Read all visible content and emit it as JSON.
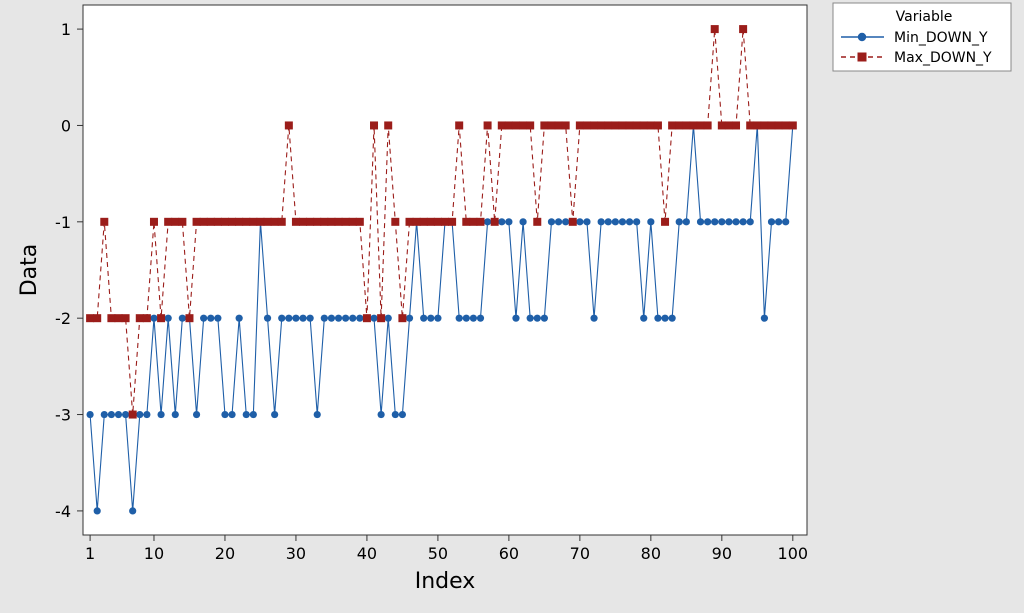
{
  "chart_data": {
    "type": "line",
    "xlabel": "Index",
    "ylabel": "Data",
    "xlim": [
      0,
      102
    ],
    "ylim": [
      -4.25,
      1.25
    ],
    "x_ticks": [
      1,
      10,
      20,
      30,
      40,
      50,
      60,
      70,
      80,
      90,
      100
    ],
    "y_ticks": [
      1,
      0,
      -1,
      -2,
      -3,
      -4
    ],
    "x_tick_labels": [
      "1",
      "10",
      "20",
      "30",
      "40",
      "50",
      "60",
      "70",
      "80",
      "90",
      "100"
    ],
    "y_tick_labels": [
      "1",
      "0",
      "-1",
      "-2",
      "-3",
      "-4"
    ],
    "legend": {
      "title": "Variable",
      "placement": "outside-top-right"
    },
    "x": [
      1,
      2,
      3,
      4,
      5,
      6,
      7,
      8,
      9,
      10,
      11,
      12,
      13,
      14,
      15,
      16,
      17,
      18,
      19,
      20,
      21,
      22,
      23,
      24,
      25,
      26,
      27,
      28,
      29,
      30,
      31,
      32,
      33,
      34,
      35,
      36,
      37,
      38,
      39,
      40,
      41,
      42,
      43,
      44,
      45,
      46,
      47,
      48,
      49,
      50,
      51,
      52,
      53,
      54,
      55,
      56,
      57,
      58,
      59,
      60,
      61,
      62,
      63,
      64,
      65,
      66,
      67,
      68,
      69,
      70,
      71,
      72,
      73,
      74,
      75,
      76,
      77,
      78,
      79,
      80,
      81,
      82,
      83,
      84,
      85,
      86,
      87,
      88,
      89,
      90,
      91,
      92,
      93,
      94,
      95,
      96,
      97,
      98,
      99,
      100
    ],
    "series": [
      {
        "name": "Min_DOWN_Y",
        "color": "#1f5fa8",
        "marker": "circle",
        "line_style": "solid",
        "values": [
          -3,
          -4,
          -3,
          -3,
          -3,
          -3,
          -4,
          -3,
          -3,
          -2,
          -3,
          -2,
          -3,
          -2,
          -2,
          -3,
          -2,
          -2,
          -2,
          -3,
          -3,
          -2,
          -3,
          -3,
          -1,
          -2,
          -3,
          -2,
          -2,
          -2,
          -2,
          -2,
          -3,
          -2,
          -2,
          -2,
          -2,
          -2,
          -2,
          -2,
          -2,
          -3,
          -2,
          -3,
          -3,
          -2,
          -1,
          -2,
          -2,
          -2,
          -1,
          -1,
          -2,
          -2,
          -2,
          -2,
          -1,
          -1,
          -1,
          -1,
          -2,
          -1,
          -2,
          -2,
          -2,
          -1,
          -1,
          -1,
          -1,
          -1,
          -1,
          -2,
          -1,
          -1,
          -1,
          -1,
          -1,
          -1,
          -2,
          -1,
          -2,
          -2,
          -2,
          -1,
          -1,
          0,
          -1,
          -1,
          -1,
          -1,
          -1,
          -1,
          -1,
          -1,
          0,
          -2,
          -1,
          -1,
          -1,
          0
        ]
      },
      {
        "name": "Max_DOWN_Y",
        "color": "#9b1d1a",
        "marker": "square",
        "line_style": "dashed",
        "values": [
          -2,
          -2,
          -1,
          -2,
          -2,
          -2,
          -3,
          -2,
          -2,
          -1,
          -2,
          -1,
          -1,
          -1,
          -2,
          -1,
          -1,
          -1,
          -1,
          -1,
          -1,
          -1,
          -1,
          -1,
          -1,
          -1,
          -1,
          -1,
          0,
          -1,
          -1,
          -1,
          -1,
          -1,
          -1,
          -1,
          -1,
          -1,
          -1,
          -2,
          0,
          -2,
          0,
          -1,
          -2,
          -1,
          -1,
          -1,
          -1,
          -1,
          -1,
          -1,
          0,
          -1,
          -1,
          -1,
          0,
          -1,
          0,
          0,
          0,
          0,
          0,
          -1,
          0,
          0,
          0,
          0,
          -1,
          0,
          0,
          0,
          0,
          0,
          0,
          0,
          0,
          0,
          0,
          0,
          0,
          -1,
          0,
          0,
          0,
          0,
          0,
          0,
          1,
          0,
          0,
          0,
          1,
          0,
          0,
          0,
          0,
          0,
          0,
          0
        ]
      }
    ]
  }
}
